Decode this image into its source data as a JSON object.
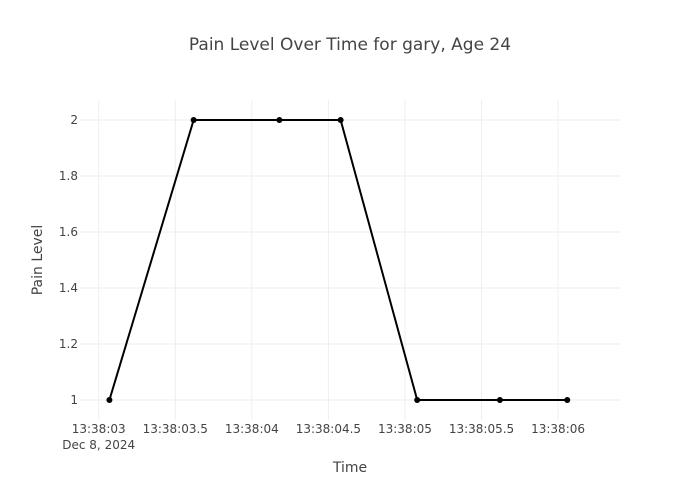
{
  "chart_data": {
    "type": "line",
    "title": "Pain Level Over Time for gary, Age 24",
    "xlabel": "Time",
    "ylabel": "Pain Level",
    "x_ticks": [
      "13:38:03",
      "13:38:03.5",
      "13:38:04",
      "13:38:04.5",
      "13:38:05",
      "13:38:05.5",
      "13:38:06"
    ],
    "x_date_label": "Dec 8, 2024",
    "y_ticks": [
      "1",
      "1.2",
      "1.4",
      "1.6",
      "1.8",
      "2"
    ],
    "xlim": [
      "13:38:03",
      "13:38:06.2"
    ],
    "ylim": [
      0.93,
      2.07
    ],
    "grid": true,
    "series": [
      {
        "color": "#000000",
        "x": [
          "13:38:03.07",
          "13:38:03.62",
          "13:38:04.18",
          "13:38:04.58",
          "13:38:05.08",
          "13:38:05.62",
          "13:38:06.06"
        ],
        "y": [
          1,
          2,
          2,
          2,
          1,
          1,
          1
        ]
      }
    ]
  }
}
